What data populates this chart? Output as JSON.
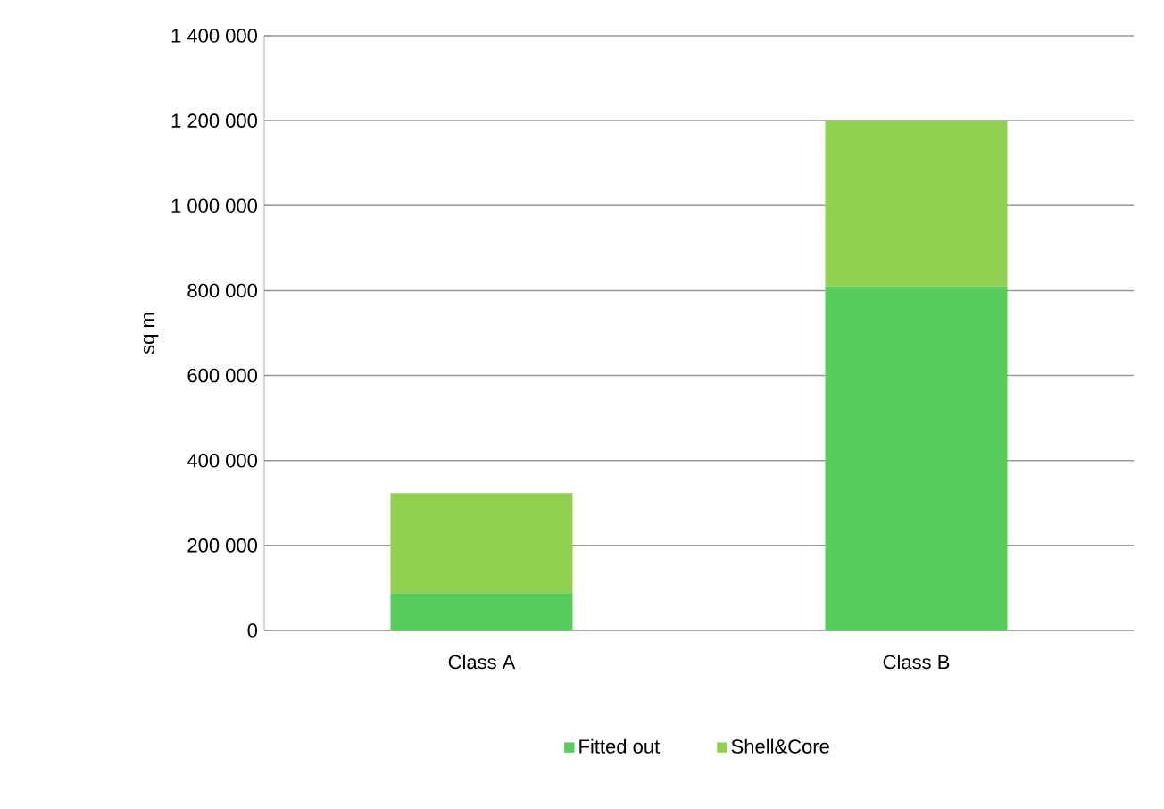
{
  "chart_data": {
    "type": "bar",
    "stacked": true,
    "ylabel": "sq m",
    "categories": [
      "Class A",
      "Class B"
    ],
    "series": [
      {
        "name": "Fitted out",
        "color": "#55cc5c",
        "values": [
          88000,
          810000
        ]
      },
      {
        "name": "Shell&Core",
        "color": "#92d050",
        "values": [
          235000,
          390000
        ]
      }
    ],
    "ylim": [
      0,
      1400000
    ],
    "yticks": [
      {
        "value": 0,
        "label": "0"
      },
      {
        "value": 200000,
        "label": "200 000"
      },
      {
        "value": 400000,
        "label": "400 000"
      },
      {
        "value": 600000,
        "label": "600 000"
      },
      {
        "value": 800000,
        "label": "800 000"
      },
      {
        "value": 1000000,
        "label": "1 000 000"
      },
      {
        "value": 1200000,
        "label": "1 200 000"
      },
      {
        "value": 1400000,
        "label": "1 400 000"
      }
    ],
    "grid": "y",
    "legend": "bottom"
  }
}
